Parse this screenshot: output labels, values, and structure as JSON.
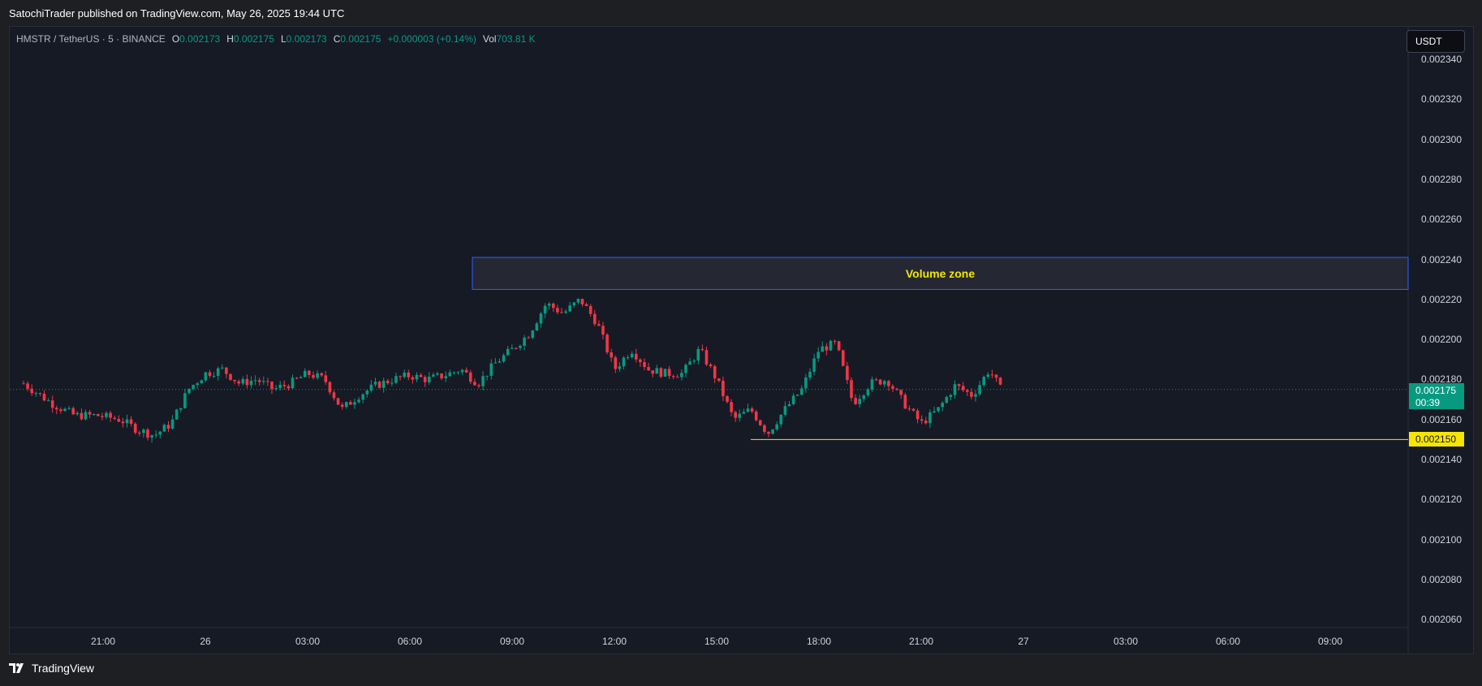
{
  "header": {
    "publish_text": "SatochiTrader published on TradingView.com, May 26, 2025 19:44 UTC"
  },
  "legend": {
    "symbol": "HMSTR / TetherUS · 5 · BINANCE",
    "open_key": "O",
    "open": "0.002173",
    "high_key": "H",
    "high": "0.002175",
    "low_key": "L",
    "low": "0.002173",
    "close_key": "C",
    "close": "0.002175",
    "change": "+0.000003 (+0.14%)",
    "vol_key": "Vol",
    "vol": "703.81 K"
  },
  "currency_button": "USDT",
  "price_axis": [
    "0.002340",
    "0.002320",
    "0.002300",
    "0.002280",
    "0.002260",
    "0.002240",
    "0.002220",
    "0.002200",
    "0.002180",
    "0.002160",
    "0.002140",
    "0.002120",
    "0.002100",
    "0.002080",
    "0.002060"
  ],
  "time_axis": [
    "21:00",
    "26",
    "03:00",
    "06:00",
    "09:00",
    "12:00",
    "15:00",
    "18:00",
    "21:00",
    "27",
    "03:00",
    "06:00",
    "09:00"
  ],
  "last_price": {
    "value": "0.002175",
    "countdown": "00:39"
  },
  "level_line": {
    "value": "0.002150",
    "price": 0.00215,
    "color": "#f5e500"
  },
  "volume_zone": {
    "label": "Volume zone",
    "top": 0.002241,
    "bottom": 0.002225,
    "border_color": "#2962ff",
    "fill_color": "#252833"
  },
  "colors": {
    "up": "#089981",
    "down": "#f23645",
    "background": "#161a25",
    "text": "#d1d4dc"
  },
  "footer": {
    "brand": "TradingView",
    "icon": "tradingview-logo-icon"
  },
  "chart_data": {
    "type": "candlestick",
    "timeframe": "5",
    "ylim": [
      0.00205,
      0.002345
    ],
    "x_ticks": [
      "21:00",
      "26",
      "03:00",
      "06:00",
      "09:00",
      "12:00",
      "15:00",
      "18:00",
      "21:00",
      "27",
      "03:00",
      "06:00",
      "09:00"
    ],
    "close_path": [
      [
        "2025-05-25 18:40",
        0.002178
      ],
      [
        "2025-05-25 19:30",
        0.002168
      ],
      [
        "2025-05-25 20:10",
        0.002162
      ],
      [
        "2025-05-25 20:50",
        0.002162
      ],
      [
        "2025-05-25 21:30",
        0.00216
      ],
      [
        "2025-05-25 22:00",
        0.002155
      ],
      [
        "2025-05-25 22:30",
        0.002152
      ],
      [
        "2025-05-25 23:00",
        0.002158
      ],
      [
        "2025-05-25 23:30",
        0.002175
      ],
      [
        "2025-05-26 00:00",
        0.002183
      ],
      [
        "2025-05-26 00:30",
        0.002185
      ],
      [
        "2025-05-26 01:00",
        0.002178
      ],
      [
        "2025-05-26 01:30",
        0.00218
      ],
      [
        "2025-05-26 02:00",
        0.002175
      ],
      [
        "2025-05-26 02:30",
        0.002178
      ],
      [
        "2025-05-26 03:00",
        0.002183
      ],
      [
        "2025-05-26 03:30",
        0.00218
      ],
      [
        "2025-05-26 04:00",
        0.002165
      ],
      [
        "2025-05-26 04:30",
        0.002172
      ],
      [
        "2025-05-26 05:00",
        0.002177
      ],
      [
        "2025-05-26 05:30",
        0.00218
      ],
      [
        "2025-05-26 06:00",
        0.002182
      ],
      [
        "2025-05-26 06:30",
        0.00218
      ],
      [
        "2025-05-26 07:00",
        0.002182
      ],
      [
        "2025-05-26 07:30",
        0.002185
      ],
      [
        "2025-05-26 08:00",
        0.002178
      ],
      [
        "2025-05-26 08:30",
        0.002188
      ],
      [
        "2025-05-26 09:00",
        0.002195
      ],
      [
        "2025-05-26 09:30",
        0.002203
      ],
      [
        "2025-05-26 10:00",
        0.002218
      ],
      [
        "2025-05-26 10:30",
        0.002213
      ],
      [
        "2025-05-26 11:00",
        0.00222
      ],
      [
        "2025-05-26 11:30",
        0.002208
      ],
      [
        "2025-05-26 12:00",
        0.002185
      ],
      [
        "2025-05-26 12:30",
        0.002195
      ],
      [
        "2025-05-26 13:00",
        0.002185
      ],
      [
        "2025-05-26 13:30",
        0.002183
      ],
      [
        "2025-05-26 14:00",
        0.002183
      ],
      [
        "2025-05-26 14:30",
        0.002195
      ],
      [
        "2025-05-26 15:00",
        0.00218
      ],
      [
        "2025-05-26 15:30",
        0.00216
      ],
      [
        "2025-05-26 16:00",
        0.002165
      ],
      [
        "2025-05-26 16:30",
        0.002153
      ],
      [
        "2025-05-26 17:00",
        0.002165
      ],
      [
        "2025-05-26 17:30",
        0.002175
      ],
      [
        "2025-05-26 18:00",
        0.002195
      ],
      [
        "2025-05-26 18:30",
        0.002198
      ],
      [
        "2025-05-26 19:00",
        0.002168
      ],
      [
        "2025-05-26 19:30",
        0.002178
      ],
      [
        "2025-05-26 20:00",
        0.00218
      ],
      [
        "2025-05-26 20:30",
        0.002168
      ],
      [
        "2025-05-26 21:00",
        0.002158
      ],
      [
        "2025-05-26 21:30",
        0.002165
      ],
      [
        "2025-05-26 22:00",
        0.002177
      ],
      [
        "2025-05-26 22:30",
        0.002172
      ],
      [
        "2025-05-26 23:00",
        0.002185
      ],
      [
        "2025-05-26 23:20",
        0.002175
      ]
    ]
  }
}
